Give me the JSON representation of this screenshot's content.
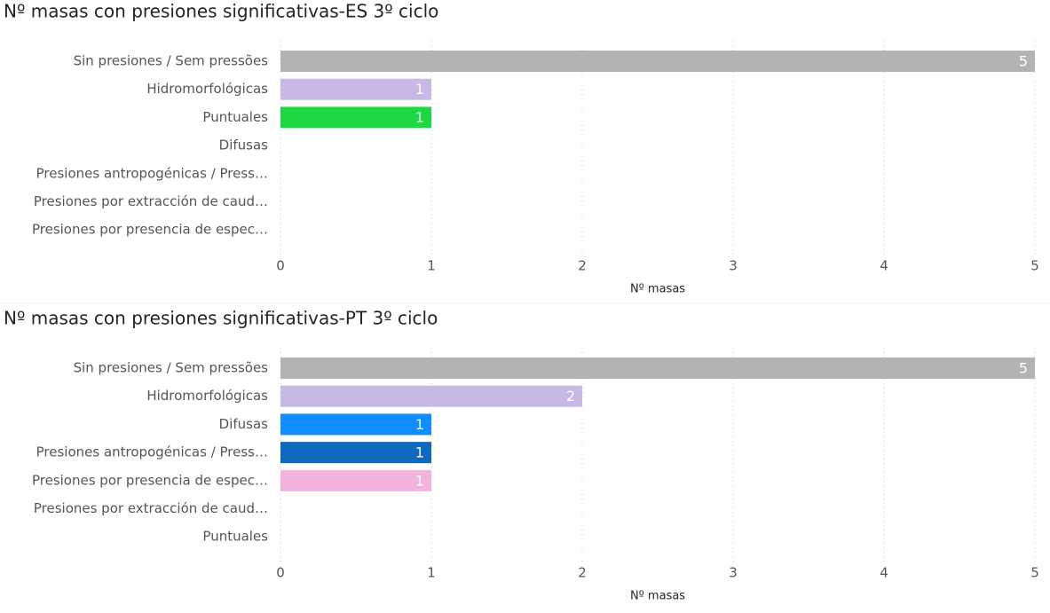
{
  "chart_data": [
    {
      "type": "bar",
      "title": "Nº masas con presiones significativas-ES 3º ciclo",
      "categories": [
        "Sin presiones / Sem pressões",
        "Hidromorfológicas",
        "Puntuales",
        "Difusas",
        "Presiones antropogénicas / Press…",
        "Presiones por extracción de caud…",
        "Presiones por presencia de espec…"
      ],
      "values": [
        5,
        1,
        1,
        null,
        null,
        null,
        null
      ],
      "colors": [
        "#b3b3b3",
        "#c7b8e6",
        "#1ed843",
        "#118dff",
        "#0d6abf",
        "#f2b4dc",
        "#e0e0e0"
      ],
      "xlim": [
        0,
        5
      ],
      "xticks": [
        0,
        1,
        2,
        3,
        4,
        5
      ],
      "xlabel": "Nº masas",
      "grid": true
    },
    {
      "type": "bar",
      "title": "Nº masas con presiones significativas-PT 3º ciclo",
      "categories": [
        "Sin presiones / Sem pressões",
        "Hidromorfológicas",
        "Difusas",
        "Presiones antropogénicas / Press…",
        "Presiones por presencia de espec…",
        "Presiones por extracción de caud…",
        "Puntuales"
      ],
      "values": [
        5,
        2,
        1,
        1,
        1,
        null,
        null
      ],
      "colors": [
        "#b3b3b3",
        "#c7b8e6",
        "#118dff",
        "#0d6abf",
        "#f2b4dc",
        "#e0e0e0",
        "#1ed843"
      ],
      "xlim": [
        0,
        5
      ],
      "xticks": [
        0,
        1,
        2,
        3,
        4,
        5
      ],
      "xlabel": "Nº masas",
      "grid": true
    }
  ]
}
